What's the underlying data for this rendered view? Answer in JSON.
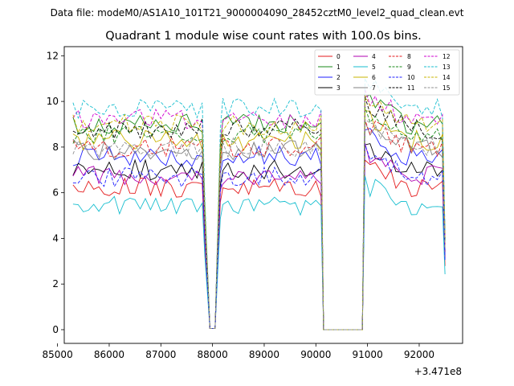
{
  "suptitle": "Data file: modeM0/AS1A10_101T21_9000004090_28452cztM0_level2_quad_clean.evt",
  "chart_data": {
    "type": "line",
    "title": "Quadrant 1 module wise count rates with 100.0s bins.",
    "xlabel": "",
    "ylabel": "",
    "x_offset_label": "+3.471e8",
    "xlim": [
      85130,
      92840
    ],
    "ylim": [
      -0.6,
      12.4
    ],
    "x_ticks": [
      85000,
      86000,
      87000,
      88000,
      89000,
      90000,
      91000,
      92000
    ],
    "x_tick_labels": [
      "85000",
      "86000",
      "87000",
      "88000",
      "89000",
      "90000",
      "91000",
      "92000"
    ],
    "y_ticks": [
      0,
      2,
      4,
      6,
      8,
      10,
      12
    ],
    "y_tick_labels": [
      "0",
      "2",
      "4",
      "6",
      "8",
      "10",
      "12"
    ],
    "segments": [
      [
        85300,
        87800
      ],
      [
        88000,
        88000
      ],
      [
        88200,
        90100
      ],
      [
        90200,
        90850
      ],
      [
        90950,
        92500
      ]
    ],
    "legend_position": "top-right",
    "series": [
      {
        "name": "0",
        "color": "#e41a1c",
        "dash": "solid",
        "base": 6.2,
        "seed": 1
      },
      {
        "name": "1",
        "color": "#1a8a1a",
        "dash": "solid",
        "base": 9.0,
        "seed": 2
      },
      {
        "name": "2",
        "color": "#1f1fff",
        "dash": "solid",
        "base": 7.6,
        "seed": 3
      },
      {
        "name": "3",
        "color": "#000000",
        "dash": "solid",
        "base": 7.0,
        "seed": 4
      },
      {
        "name": "4",
        "color": "#b000b0",
        "dash": "solid",
        "base": 6.8,
        "seed": 5
      },
      {
        "name": "5",
        "color": "#17becf",
        "dash": "solid",
        "base": 5.4,
        "seed": 6
      },
      {
        "name": "6",
        "color": "#c8b400",
        "dash": "solid",
        "base": 8.3,
        "seed": 7
      },
      {
        "name": "7",
        "color": "#808080",
        "dash": "solid",
        "base": 7.9,
        "seed": 8
      },
      {
        "name": "8",
        "color": "#e41a1c",
        "dash": "dashed",
        "base": 8.0,
        "seed": 9
      },
      {
        "name": "9",
        "color": "#1a8a1a",
        "dash": "dashed",
        "base": 8.6,
        "seed": 10
      },
      {
        "name": "10",
        "color": "#1f1fff",
        "dash": "dashed",
        "base": 6.7,
        "seed": 11
      },
      {
        "name": "11",
        "color": "#000000",
        "dash": "dashed",
        "base": 8.8,
        "seed": 12
      },
      {
        "name": "12",
        "color": "#d000d0",
        "dash": "dashed",
        "base": 9.2,
        "seed": 13
      },
      {
        "name": "13",
        "color": "#17becf",
        "dash": "dashed",
        "base": 9.7,
        "seed": 14
      },
      {
        "name": "14",
        "color": "#c8b400",
        "dash": "dashed",
        "base": 9.0,
        "seed": 15
      },
      {
        "name": "15",
        "color": "#909090",
        "dash": "dashed",
        "base": 8.0,
        "seed": 16
      }
    ]
  }
}
